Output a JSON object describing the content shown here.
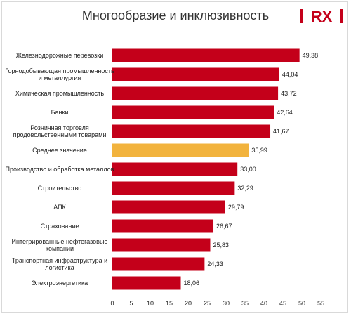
{
  "title": "Многообразие и инклюзивность",
  "logo": {
    "text": "RX",
    "color": "#c4001a"
  },
  "colors": {
    "bar": "#c4001a",
    "highlight": "#f2b33d"
  },
  "chart_data": {
    "type": "bar",
    "orientation": "horizontal",
    "title": "Многообразие и инклюзивность",
    "categories": [
      [
        "Железнодорожные перевозки"
      ],
      [
        "Горнодобывающая промышленность",
        "и металлургия"
      ],
      [
        "Химическая промышленность"
      ],
      [
        "Банки"
      ],
      [
        "Розничная торговля",
        "продовольственными товарами"
      ],
      [
        "Среднее значение"
      ],
      [
        "Производство и обработка металлов"
      ],
      [
        "Строительство"
      ],
      [
        "АПК"
      ],
      [
        "Страхование"
      ],
      [
        "Интегрированные нефтегазовые",
        "компании"
      ],
      [
        "Транспортная инфраструктура и",
        "логистика"
      ],
      [
        "Электроэнергетика"
      ]
    ],
    "values": [
      49.38,
      44.04,
      43.72,
      42.64,
      41.67,
      35.99,
      33.0,
      32.29,
      29.79,
      26.67,
      25.83,
      24.33,
      18.06
    ],
    "value_labels": [
      "49,38",
      "44,04",
      "43,72",
      "42,64",
      "41,67",
      "35,99",
      "33,00",
      "32,29",
      "29,79",
      "26,67",
      "25,83",
      "24,33",
      "18,06"
    ],
    "highlight_index": 5,
    "xticks": [
      0,
      5,
      10,
      15,
      20,
      25,
      30,
      35,
      40,
      45,
      50,
      55
    ],
    "xlim": [
      0,
      55
    ],
    "grid": false
  }
}
